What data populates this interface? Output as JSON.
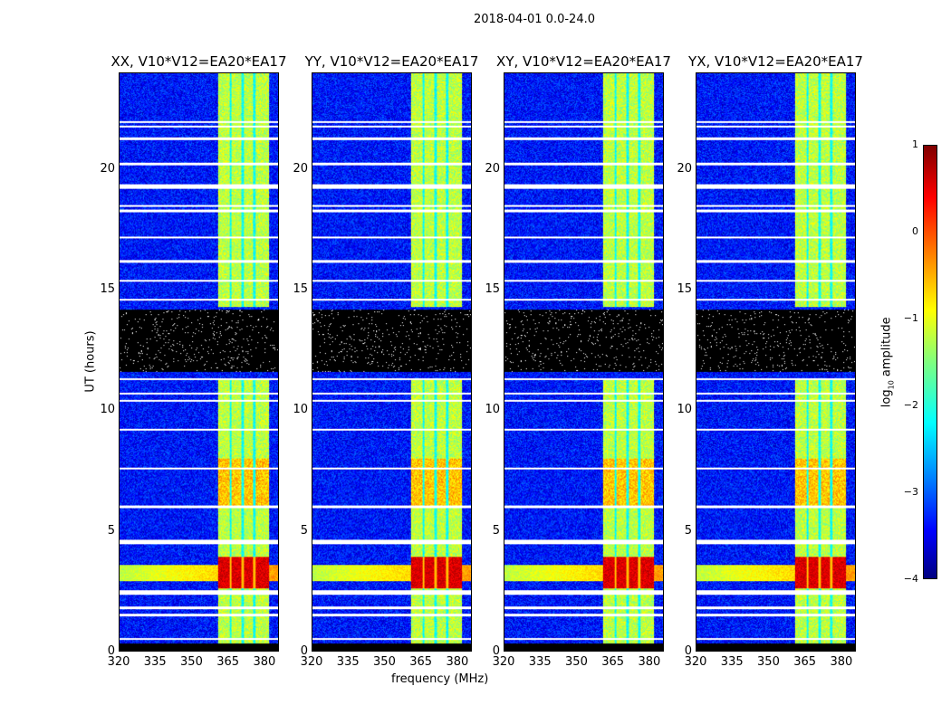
{
  "suptitle": "2018-04-01 0.0-24.0",
  "chart_data": {
    "type": "heatmap",
    "xlabel": "frequency (MHz)",
    "ylabel": "UT (hours)",
    "xlim": [
      320,
      386
    ],
    "ylim": [
      0,
      24
    ],
    "xticks": [
      "320",
      "335",
      "350",
      "365",
      "380"
    ],
    "xtick_values": [
      320,
      335,
      350,
      365,
      380
    ],
    "yticks": [
      "0",
      "5",
      "10",
      "15",
      "20"
    ],
    "ytick_values": [
      0,
      5,
      10,
      15,
      20
    ],
    "panels": [
      {
        "title": "XX, V10*V12=EA20*EA17"
      },
      {
        "title": "YY, V10*V12=EA20*EA17"
      },
      {
        "title": "XY, V10*V12=EA20*EA17"
      },
      {
        "title": "YX, V10*V12=EA20*EA17"
      }
    ],
    "colorbar": {
      "label": "log10 amplitude",
      "label_main": "log",
      "label_sub": "10",
      "label_rest": " amplitude",
      "range": [
        -4,
        1
      ],
      "ticks": [
        "1",
        "0",
        "−1",
        "−2",
        "−3",
        "−4"
      ],
      "tick_values": [
        1,
        0,
        -1,
        -2,
        -3,
        -4
      ],
      "colormap": "jet"
    },
    "features": {
      "background_level": -3.3,
      "rfi_band_mhz": [
        361,
        382
      ],
      "rfi_level": -1.2,
      "rfi_subband_gaps_mhz": [
        366,
        371,
        376
      ],
      "strong_event_ut": [
        2.6,
        3.9
      ],
      "strong_event_level": 0.8,
      "blanked_ut": [
        [
          0,
          0.3
        ],
        [
          11.6,
          14.2
        ]
      ],
      "flagged_ut": [
        0.5,
        1.5,
        1.8,
        2.4,
        2.5,
        4.5,
        4.6,
        6.0,
        7.6,
        9.2,
        10.4,
        10.7,
        11.3,
        14.6,
        15.4,
        16.2,
        17.2,
        18.3,
        18.5,
        19.25,
        19.35,
        20.25,
        21.3,
        21.8,
        22.0
      ]
    }
  }
}
